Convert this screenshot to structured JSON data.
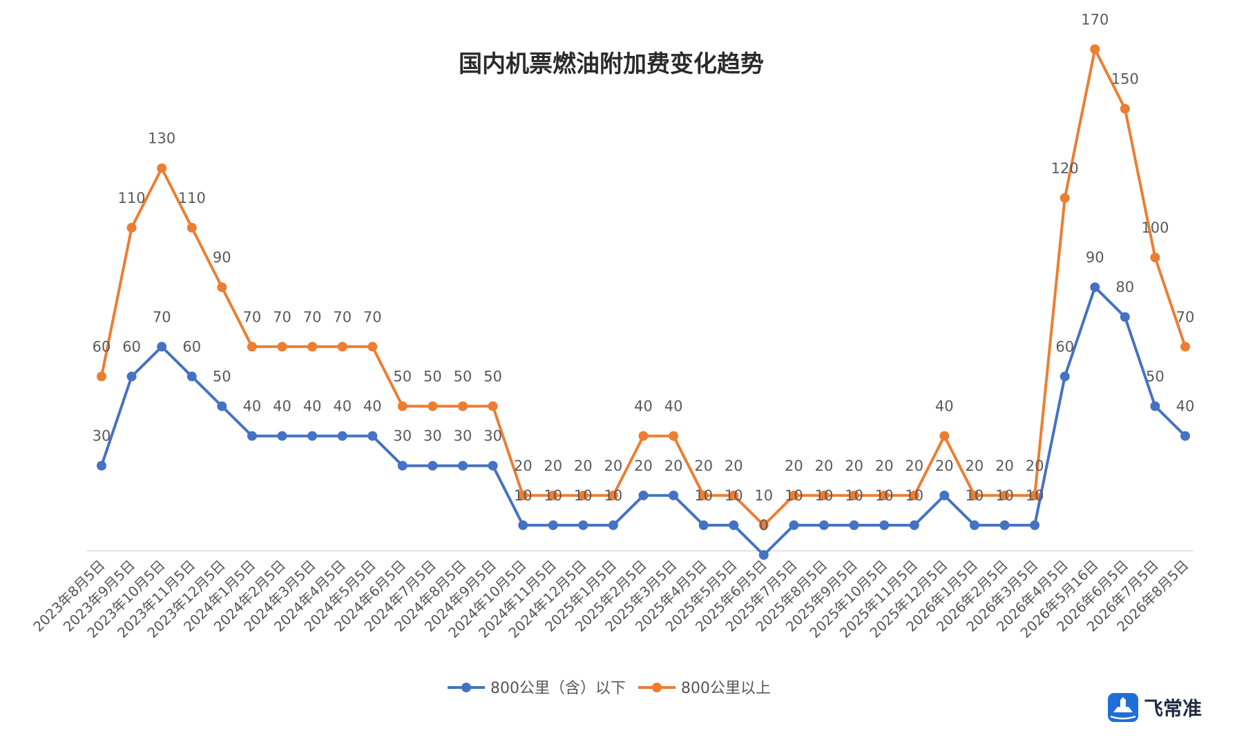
{
  "brand": {
    "name": "飞常准",
    "icon": "airplane-logo-icon",
    "color": "#1E6FD9"
  },
  "chart_data": {
    "type": "line",
    "title": "国内机票燃油附加费变化趋势",
    "xlabel": "",
    "ylabel": "",
    "ylim": [
      0,
      180
    ],
    "grid": false,
    "legend": "bottom",
    "categories": [
      "2023年8月5日",
      "2023年9月5日",
      "2023年10月5日",
      "2023年11月5日",
      "2023年12月5日",
      "2024年1月5日",
      "2024年2月5日",
      "2024年3月5日",
      "2024年4月5日",
      "2024年5月5日",
      "2024年6月5日",
      "2024年7月5日",
      "2024年8月5日",
      "2024年9月5日",
      "2024年10月5日",
      "2024年11月5日",
      "2024年12月5日",
      "2025年1月5日",
      "2025年2月5日",
      "2025年3月5日",
      "2025年4月5日",
      "2025年5月5日",
      "2025年6月5日",
      "2025年7月5日",
      "2025年8月5日",
      "2025年9月5日",
      "2025年10月5日",
      "2025年11月5日",
      "2025年12月5日",
      "2026年1月5日",
      "2026年2月5日",
      "2026年3月5日",
      "2026年4月5日",
      "2026年5月16日",
      "2026年6月5日",
      "2026年7月5日",
      "2026年8月5日"
    ],
    "series": [
      {
        "name": "800公里（含）以下",
        "color": "#4472C4",
        "values": [
          30,
          60,
          70,
          60,
          50,
          40,
          40,
          40,
          40,
          40,
          30,
          30,
          30,
          30,
          10,
          10,
          10,
          10,
          20,
          20,
          10,
          10,
          0,
          10,
          10,
          10,
          10,
          10,
          20,
          10,
          10,
          10,
          60,
          90,
          80,
          50,
          40
        ]
      },
      {
        "name": "800公里以上",
        "color": "#ED7D31",
        "values": [
          60,
          110,
          130,
          110,
          90,
          70,
          70,
          70,
          70,
          70,
          50,
          50,
          50,
          50,
          20,
          20,
          20,
          20,
          40,
          40,
          20,
          20,
          10,
          20,
          20,
          20,
          20,
          20,
          40,
          20,
          20,
          20,
          120,
          170,
          150,
          100,
          70
        ]
      }
    ]
  }
}
